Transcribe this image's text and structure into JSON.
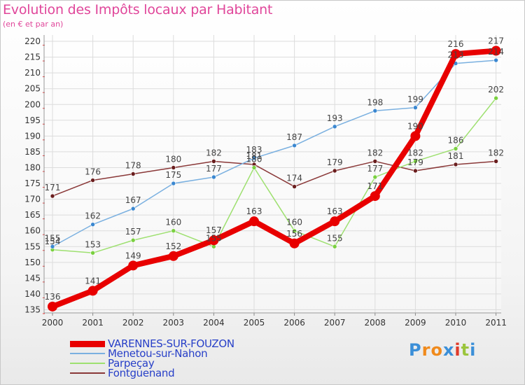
{
  "title": "Evolution des Impôts locaux par Habitant",
  "subtitle": "(en € et par an)",
  "logo": {
    "letters": [
      "P",
      "r",
      "o",
      "x",
      "i",
      "t",
      "i"
    ],
    "colors": [
      "#3b8fd8",
      "#f08a1c",
      "#f08a1c",
      "#3b8fd8",
      "#e03a2a",
      "#9bc53d",
      "#3b8fd8"
    ]
  },
  "chart_data": {
    "type": "line",
    "x": [
      "2000",
      "2001",
      "2002",
      "2003",
      "2004",
      "2005",
      "2006",
      "2007",
      "2008",
      "2009",
      "2010",
      "2011"
    ],
    "ylim": [
      134,
      222
    ],
    "yticks": [
      135,
      140,
      145,
      150,
      155,
      160,
      165,
      170,
      175,
      180,
      185,
      190,
      195,
      200,
      205,
      210,
      215,
      220
    ],
    "grid": true,
    "series": [
      {
        "name": "VARENNES-SUR-FOUZON",
        "color": "#e80000",
        "dot": "#e80000",
        "thick": true,
        "values": [
          136,
          141,
          149,
          152,
          157,
          163,
          156,
          163,
          171,
          190,
          216,
          217
        ],
        "labels": [
          "136",
          "141",
          "149",
          "152",
          "157",
          "163",
          "156",
          "163",
          "171",
          "190",
          "216",
          "217"
        ]
      },
      {
        "name": "Menetou-sur-Nahon",
        "color": "#7ab0e0",
        "dot": "#3a87d0",
        "thick": false,
        "values": [
          155,
          162,
          167,
          175,
          177,
          183,
          187,
          193,
          198,
          199,
          213,
          214
        ],
        "labels": [
          "155",
          "162",
          "167",
          "175",
          "177",
          "183",
          "187",
          "193",
          "198",
          "199",
          "213",
          "214"
        ]
      },
      {
        "name": "Parpeçay",
        "color": "#9ee070",
        "dot": "#7ad040",
        "thick": false,
        "values": [
          154,
          153,
          157,
          160,
          155,
          180,
          160,
          155,
          177,
          182,
          186,
          202
        ],
        "labels": [
          "154",
          "153",
          "157",
          "160",
          "155",
          "180",
          "160",
          "155",
          "177",
          "182",
          "186",
          "202"
        ]
      },
      {
        "name": "Fontguenand",
        "color": "#8a3838",
        "dot": "#6a1e1e",
        "thick": false,
        "values": [
          171,
          176,
          178,
          180,
          182,
          181,
          174,
          179,
          182,
          179,
          181,
          182
        ],
        "labels": [
          "171",
          "176",
          "178",
          "180",
          "182",
          "181",
          "174",
          "179",
          "182",
          "179",
          "181",
          "182"
        ]
      }
    ]
  }
}
